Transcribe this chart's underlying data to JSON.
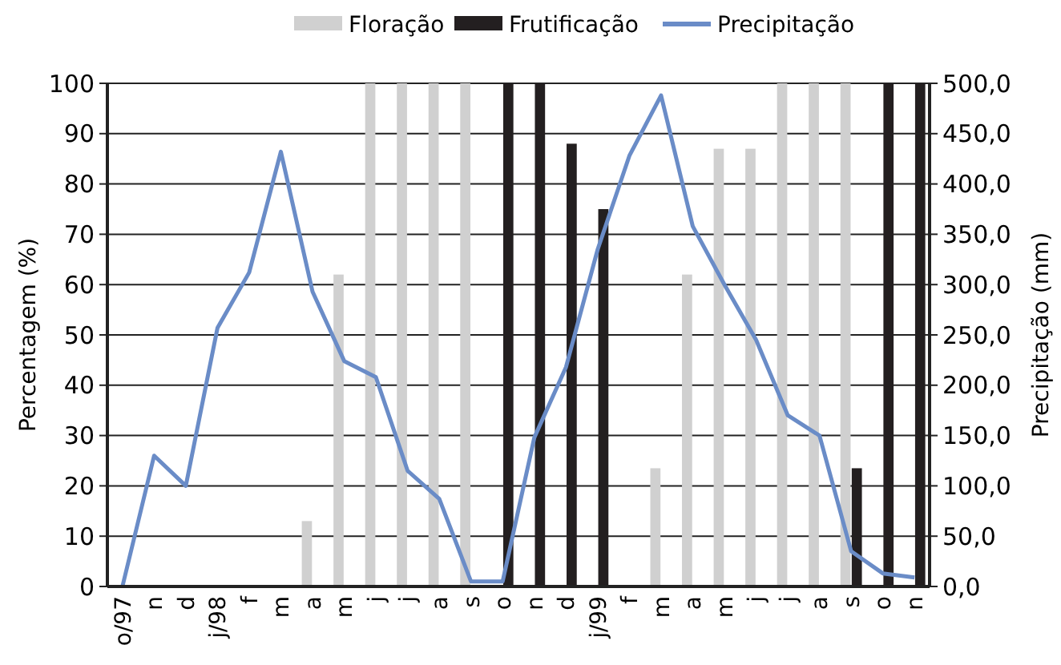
{
  "chart_data": {
    "type": "bar",
    "categories": [
      "o/97",
      "n",
      "d",
      "j/98",
      "f",
      "m",
      "a",
      "m",
      "j",
      "j",
      "a",
      "s",
      "o",
      "n",
      "d",
      "j/99",
      "f",
      "m",
      "a",
      "m",
      "j",
      "j",
      "a",
      "s",
      "o",
      "n"
    ],
    "series": [
      {
        "name": "Floração",
        "color": "#d0d0d0",
        "values": [
          null,
          null,
          null,
          null,
          null,
          null,
          13,
          62,
          100,
          100,
          100,
          100,
          null,
          null,
          null,
          null,
          null,
          23.5,
          62,
          87,
          87,
          100,
          100,
          100,
          null,
          null
        ]
      },
      {
        "name": "Frutificação",
        "color": "#231f20",
        "values": [
          null,
          null,
          null,
          null,
          null,
          null,
          null,
          null,
          null,
          null,
          null,
          null,
          100,
          100,
          88,
          75,
          null,
          null,
          null,
          null,
          null,
          null,
          null,
          23.5,
          100,
          100
        ]
      },
      {
        "name": "Precipitação",
        "type": "line",
        "axis": "y2",
        "color": "#6a8cc7",
        "values": [
          0,
          130,
          100,
          257,
          312,
          432,
          293,
          224,
          208,
          115,
          87,
          5,
          5,
          148,
          218,
          335,
          428,
          488,
          358,
          300,
          245,
          170,
          150,
          35,
          13,
          9
        ]
      }
    ],
    "ylabel": "Percentagem (%)",
    "y2label": "Precipitação (mm)",
    "ylim": [
      0,
      100
    ],
    "yticks": [
      0,
      10,
      20,
      30,
      40,
      50,
      60,
      70,
      80,
      90,
      100
    ],
    "y2lim": [
      0,
      500
    ],
    "y2ticks": [
      {
        "value": 0,
        "label": "0,0"
      },
      {
        "value": 50,
        "label": "50,0"
      },
      {
        "value": 100,
        "label": "100,0"
      },
      {
        "value": 150,
        "label": "150,0"
      },
      {
        "value": 200,
        "label": "200,0"
      },
      {
        "value": 250,
        "label": "250,0"
      },
      {
        "value": 300,
        "label": "300,0"
      },
      {
        "value": 350,
        "label": "350,0"
      },
      {
        "value": 400,
        "label": "400,0"
      },
      {
        "value": 450,
        "label": "450,0"
      },
      {
        "value": 500,
        "label": "500,0"
      }
    ],
    "grid": "y",
    "legend": "top",
    "marker": "none",
    "line_style": "solid"
  }
}
